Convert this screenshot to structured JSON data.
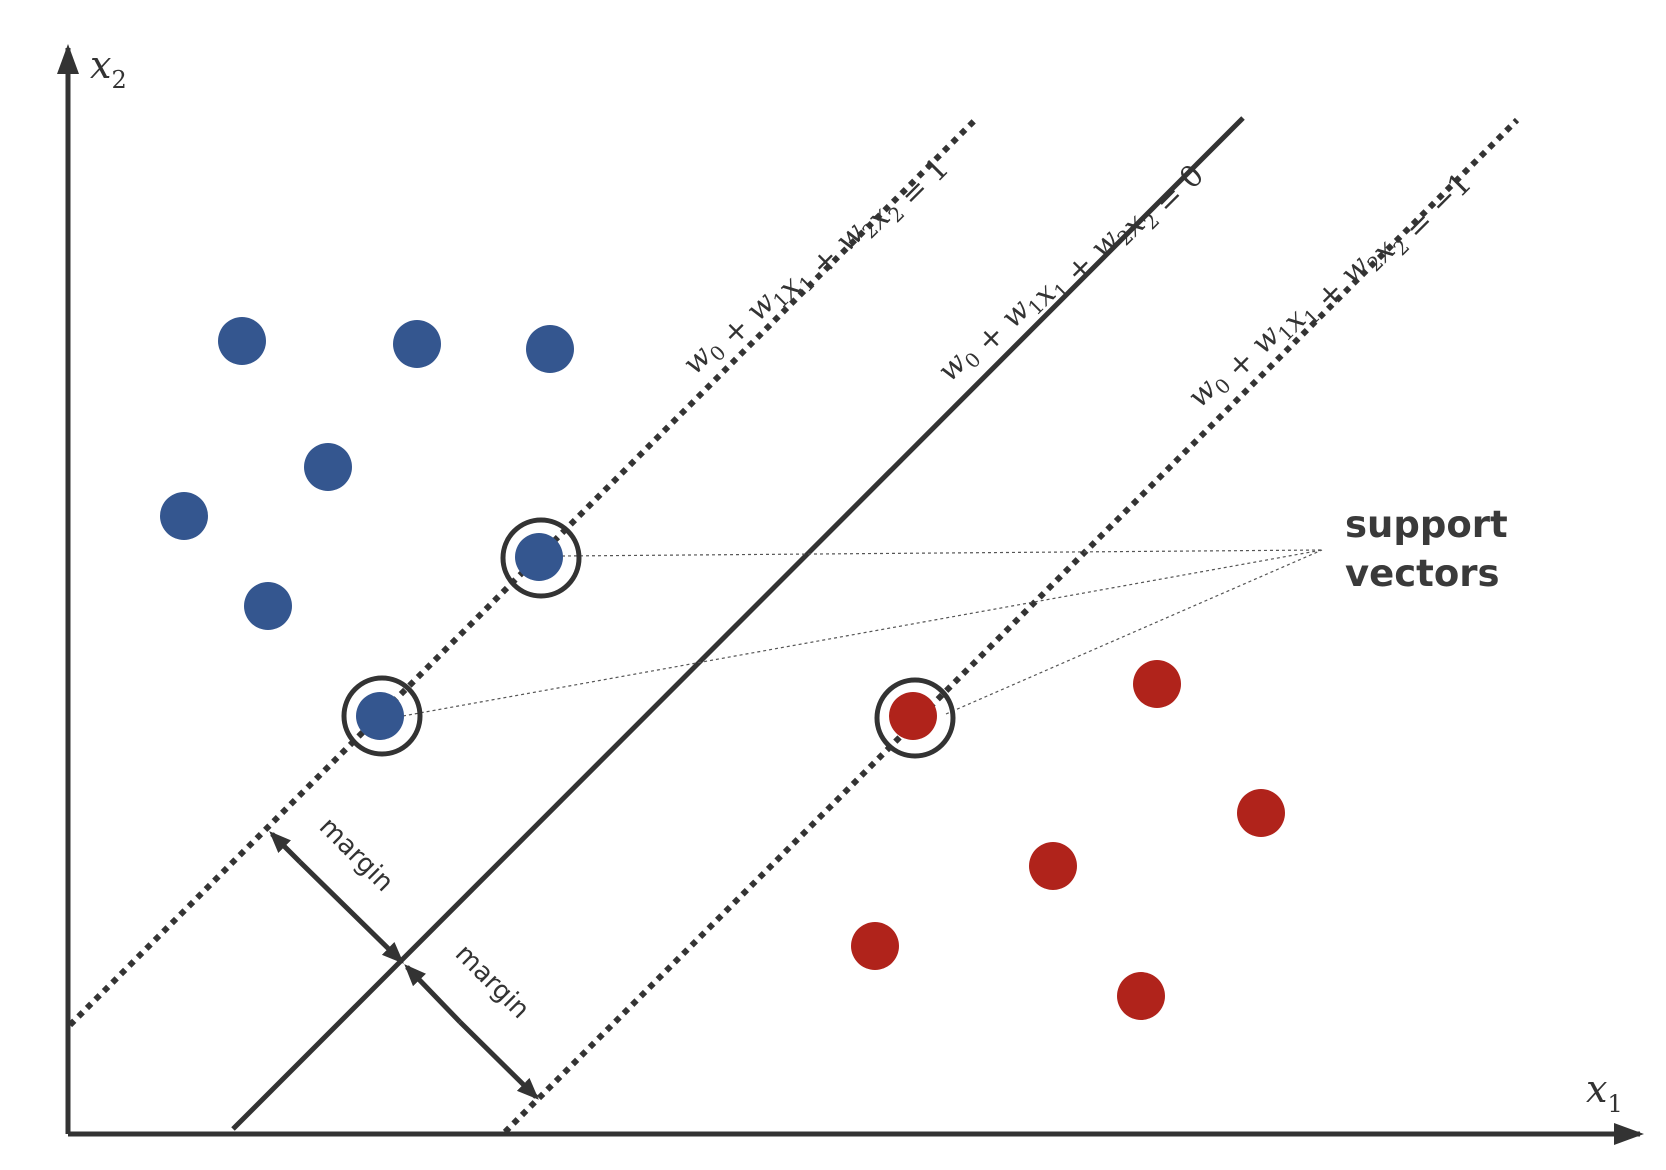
{
  "axes": {
    "x_label": "x",
    "x_subscript": "1",
    "y_label": "x",
    "y_subscript": "2"
  },
  "lines": {
    "upper_margin": {
      "lhs": [
        [
          "w",
          "0"
        ],
        [
          "+ "
        ],
        [
          "w",
          "1"
        ],
        [
          "x",
          "1"
        ],
        [
          "+ "
        ],
        [
          "w",
          "2"
        ],
        [
          "x",
          "2"
        ]
      ],
      "rhs": "= 1",
      "style": "dotted"
    },
    "decision": {
      "lhs": [
        [
          "w",
          "0"
        ],
        [
          "+ "
        ],
        [
          "w",
          "1"
        ],
        [
          "x",
          "1"
        ],
        [
          "+ "
        ],
        [
          "w",
          "2"
        ],
        [
          "x",
          "2"
        ]
      ],
      "rhs": "= 0",
      "style": "solid"
    },
    "lower_margin": {
      "lhs": [
        [
          "w",
          "0"
        ],
        [
          "+ "
        ],
        [
          "w",
          "1"
        ],
        [
          "x",
          "1"
        ],
        [
          "+ "
        ],
        [
          "w",
          "2"
        ],
        [
          "x",
          "2"
        ]
      ],
      "rhs": "= −1",
      "style": "dotted"
    }
  },
  "annotations": {
    "support_vectors_line1": "support",
    "support_vectors_line2": "vectors",
    "margin_upper": "margin",
    "margin_lower": "margin"
  },
  "colors": {
    "class_blue": "#34568f",
    "class_red": "#b0231b",
    "ink": "#333333"
  }
}
